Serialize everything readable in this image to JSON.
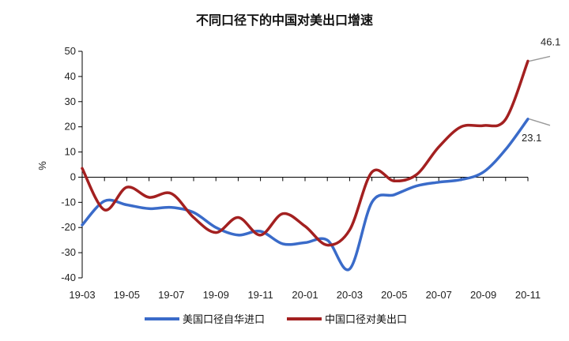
{
  "chart_data": {
    "type": "line",
    "title": "不同口径下的中国对美出口增速",
    "xlabel": "",
    "ylabel": "%",
    "ylim": [
      -40,
      50
    ],
    "yticks": [
      -40,
      -30,
      -20,
      -10,
      0,
      10,
      20,
      30,
      40,
      50
    ],
    "x_tick_labels": [
      "19-03",
      "19-05",
      "19-07",
      "19-09",
      "19-11",
      "20-01",
      "20-03",
      "20-05",
      "20-07",
      "20-09",
      "20-11"
    ],
    "categories": [
      "19-03",
      "19-04",
      "19-05",
      "19-06",
      "19-07",
      "19-08",
      "19-09",
      "19-10",
      "19-11",
      "19-12",
      "20-01",
      "20-02",
      "20-03",
      "20-04",
      "20-05",
      "20-06",
      "20-07",
      "20-08",
      "20-09",
      "20-10",
      "20-11"
    ],
    "legend_position": "bottom",
    "grid": false,
    "series": [
      {
        "name": "美国口径自华进口",
        "color": "#3A6BC9",
        "values": [
          -19,
          -9.5,
          -11,
          -12.5,
          -12,
          -14,
          -20,
          -23,
          -21.5,
          -26.5,
          -26,
          -25,
          -36.5,
          -10,
          -7,
          -3.5,
          -2,
          -1,
          2,
          11,
          23.1
        ]
      },
      {
        "name": "中国口径对美出口",
        "color": "#A32020",
        "values": [
          3.5,
          -13,
          -4,
          -8,
          -6.5,
          -16,
          -22,
          -16,
          -23,
          -14.5,
          -19.5,
          -27,
          -21,
          2,
          -1.5,
          1,
          12,
          20,
          20.5,
          23,
          46.1
        ]
      }
    ],
    "annotations": [
      {
        "series": 1,
        "text": "46.1"
      },
      {
        "series": 0,
        "text": "23.1"
      }
    ]
  }
}
